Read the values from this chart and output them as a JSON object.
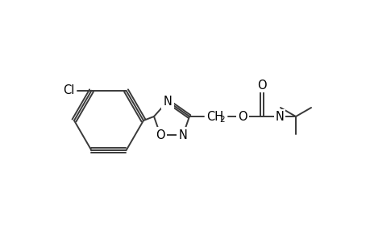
{
  "bg_color": "#ffffff",
  "line_color": "#3a3a3a",
  "text_color": "#000000",
  "line_width": 1.4,
  "font_size": 10.5,
  "sub_font_size": 7.5,
  "fig_width": 4.6,
  "fig_height": 3.0,
  "dpi": 100,
  "xlim": [
    0,
    460
  ],
  "ylim": [
    0,
    300
  ]
}
